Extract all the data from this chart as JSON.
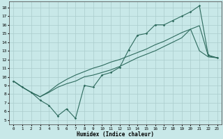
{
  "xlabel": "Humidex (Indice chaleur)",
  "background_color": "#c8e8e8",
  "grid_color": "#aacccc",
  "line_color": "#2e6b5e",
  "xlim": [
    -0.5,
    23.5
  ],
  "ylim": [
    4.5,
    18.7
  ],
  "xticks": [
    0,
    1,
    2,
    3,
    4,
    5,
    6,
    7,
    8,
    9,
    10,
    11,
    12,
    13,
    14,
    15,
    16,
    17,
    18,
    19,
    20,
    21,
    22,
    23
  ],
  "yticks": [
    5,
    6,
    7,
    8,
    9,
    10,
    11,
    12,
    13,
    14,
    15,
    16,
    17,
    18
  ],
  "series1_x": [
    0,
    1,
    2,
    3,
    4,
    5,
    6,
    7,
    8,
    9,
    10,
    11,
    12,
    13,
    14,
    15,
    16,
    17,
    18,
    19,
    20,
    21,
    22,
    23
  ],
  "series1_y": [
    9.5,
    8.8,
    8.2,
    7.3,
    6.7,
    5.5,
    6.3,
    5.2,
    9.0,
    8.8,
    10.2,
    10.5,
    11.1,
    13.1,
    14.8,
    15.0,
    16.0,
    16.0,
    16.5,
    17.0,
    17.5,
    18.2,
    12.5,
    12.2
  ],
  "series2_x": [
    0,
    1,
    2,
    3,
    4,
    5,
    6,
    7,
    8,
    9,
    10,
    11,
    12,
    13,
    14,
    15,
    16,
    17,
    18,
    19,
    20,
    21,
    22,
    23
  ],
  "series2_y": [
    9.5,
    8.8,
    8.2,
    7.7,
    8.2,
    8.8,
    9.2,
    9.5,
    10.0,
    10.2,
    10.5,
    10.8,
    11.2,
    11.7,
    12.2,
    12.6,
    13.0,
    13.5,
    14.0,
    14.5,
    15.5,
    13.0,
    12.3,
    12.2
  ],
  "series3_x": [
    0,
    1,
    2,
    3,
    4,
    5,
    6,
    7,
    8,
    9,
    10,
    11,
    12,
    13,
    14,
    15,
    16,
    17,
    18,
    19,
    20,
    21,
    22,
    23
  ],
  "series3_y": [
    9.5,
    8.8,
    8.2,
    7.7,
    8.3,
    9.1,
    9.7,
    10.2,
    10.6,
    11.0,
    11.3,
    11.7,
    12.0,
    12.4,
    12.8,
    13.2,
    13.7,
    14.1,
    14.6,
    15.1,
    15.5,
    15.9,
    12.4,
    12.2
  ]
}
